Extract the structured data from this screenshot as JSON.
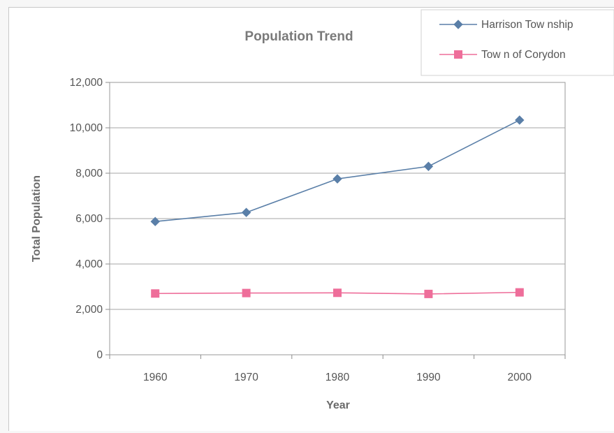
{
  "chart_data": {
    "type": "line",
    "title": "Population Trend",
    "xlabel": "Year",
    "ylabel": "Total Population",
    "categories": [
      "1960",
      "1970",
      "1980",
      "1990",
      "2000"
    ],
    "ylim": [
      0,
      12000
    ],
    "y_ticks": [
      0,
      2000,
      4000,
      6000,
      8000,
      10000,
      12000
    ],
    "y_tick_labels": [
      "0",
      "2,000",
      "4,000",
      "6,000",
      "8,000",
      "10,000",
      "12,000"
    ],
    "grid": "horizontal",
    "legend_position": "top-right",
    "series": [
      {
        "name": "Harrison Tow nship",
        "values": [
          5870,
          6270,
          7750,
          8300,
          10340
        ],
        "color": "#5a7fa8",
        "marker": "diamond"
      },
      {
        "name": "Tow n of Corydon",
        "values": [
          2700,
          2720,
          2730,
          2680,
          2750
        ],
        "color": "#ee6e9a",
        "marker": "square"
      }
    ]
  }
}
